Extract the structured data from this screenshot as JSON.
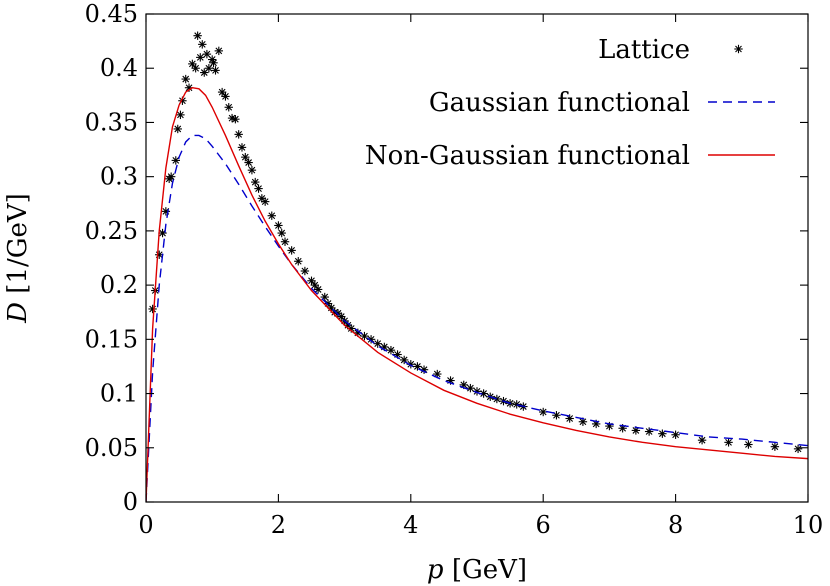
{
  "chart_data": {
    "type": "line",
    "xlabel_var": "p",
    "xlabel_unit": " [GeV]",
    "ylabel_var": "D",
    "ylabel_unit": " [1/GeV]",
    "xlim": [
      0,
      10
    ],
    "ylim": [
      0,
      0.45
    ],
    "x_ticks": [
      0,
      2,
      4,
      6,
      8,
      10
    ],
    "y_ticks": [
      0,
      0.05,
      0.1,
      0.15,
      0.2,
      0.25,
      0.3,
      0.35,
      0.4,
      0.45
    ],
    "x_tick_labels": [
      "0",
      "2",
      "4",
      "6",
      "8",
      "10"
    ],
    "y_tick_labels": [
      "0",
      "0.05",
      "0.1",
      "0.15",
      "0.2",
      "0.25",
      "0.3",
      "0.35",
      "0.4",
      "0.45"
    ],
    "grid": false,
    "legend_position": "top-right",
    "colors": {
      "lattice": "#000000",
      "gaussian": "#0000cc",
      "non_gaussian": "#dd0000"
    },
    "series": [
      {
        "name": "Lattice",
        "style": "points",
        "points": [
          [
            0.1,
            0.178
          ],
          [
            0.14,
            0.195
          ],
          [
            0.2,
            0.228
          ],
          [
            0.25,
            0.248
          ],
          [
            0.3,
            0.268
          ],
          [
            0.35,
            0.298
          ],
          [
            0.38,
            0.3
          ],
          [
            0.45,
            0.315
          ],
          [
            0.48,
            0.344
          ],
          [
            0.52,
            0.357
          ],
          [
            0.55,
            0.37
          ],
          [
            0.6,
            0.39
          ],
          [
            0.65,
            0.382
          ],
          [
            0.7,
            0.404
          ],
          [
            0.75,
            0.4
          ],
          [
            0.78,
            0.43
          ],
          [
            0.82,
            0.41
          ],
          [
            0.85,
            0.422
          ],
          [
            0.88,
            0.396
          ],
          [
            0.92,
            0.413
          ],
          [
            0.95,
            0.4
          ],
          [
            1.0,
            0.408
          ],
          [
            1.02,
            0.405
          ],
          [
            1.05,
            0.398
          ],
          [
            1.1,
            0.416
          ],
          [
            1.15,
            0.378
          ],
          [
            1.2,
            0.374
          ],
          [
            1.25,
            0.364
          ],
          [
            1.3,
            0.354
          ],
          [
            1.35,
            0.353
          ],
          [
            1.4,
            0.339
          ],
          [
            1.45,
            0.327
          ],
          [
            1.5,
            0.318
          ],
          [
            1.55,
            0.313
          ],
          [
            1.6,
            0.306
          ],
          [
            1.65,
            0.295
          ],
          [
            1.7,
            0.289
          ],
          [
            1.75,
            0.28
          ],
          [
            1.8,
            0.277
          ],
          [
            1.9,
            0.264
          ],
          [
            2.0,
            0.255
          ],
          [
            2.05,
            0.248
          ],
          [
            2.1,
            0.24
          ],
          [
            2.2,
            0.232
          ],
          [
            2.3,
            0.222
          ],
          [
            2.4,
            0.213
          ],
          [
            2.5,
            0.204
          ],
          [
            2.55,
            0.2
          ],
          [
            2.6,
            0.196
          ],
          [
            2.7,
            0.189
          ],
          [
            2.75,
            0.183
          ],
          [
            2.8,
            0.179
          ],
          [
            2.85,
            0.175
          ],
          [
            2.9,
            0.174
          ],
          [
            2.95,
            0.171
          ],
          [
            3.0,
            0.167
          ],
          [
            3.05,
            0.163
          ],
          [
            3.1,
            0.16
          ],
          [
            3.2,
            0.156
          ],
          [
            3.3,
            0.153
          ],
          [
            3.4,
            0.15
          ],
          [
            3.5,
            0.146
          ],
          [
            3.6,
            0.143
          ],
          [
            3.7,
            0.14
          ],
          [
            3.8,
            0.136
          ],
          [
            3.9,
            0.131
          ],
          [
            4.0,
            0.127
          ],
          [
            4.1,
            0.125
          ],
          [
            4.2,
            0.122
          ],
          [
            4.4,
            0.118
          ],
          [
            4.6,
            0.112
          ],
          [
            4.8,
            0.108
          ],
          [
            4.9,
            0.105
          ],
          [
            5.0,
            0.102
          ],
          [
            5.1,
            0.1
          ],
          [
            5.2,
            0.097
          ],
          [
            5.3,
            0.095
          ],
          [
            5.4,
            0.093
          ],
          [
            5.5,
            0.091
          ],
          [
            5.6,
            0.09
          ],
          [
            5.7,
            0.088
          ],
          [
            6.0,
            0.083
          ],
          [
            6.2,
            0.08
          ],
          [
            6.4,
            0.077
          ],
          [
            6.6,
            0.074
          ],
          [
            6.8,
            0.072
          ],
          [
            7.0,
            0.07
          ],
          [
            7.2,
            0.068
          ],
          [
            7.4,
            0.066
          ],
          [
            7.6,
            0.065
          ],
          [
            7.8,
            0.063
          ],
          [
            8.0,
            0.062
          ],
          [
            8.4,
            0.057
          ],
          [
            8.8,
            0.055
          ],
          [
            9.1,
            0.053
          ],
          [
            9.5,
            0.051
          ],
          [
            9.85,
            0.049
          ]
        ]
      },
      {
        "name": "Gaussian functional",
        "style": "dashed",
        "points": [
          [
            0.0,
            0.0
          ],
          [
            0.05,
            0.06
          ],
          [
            0.1,
            0.12
          ],
          [
            0.2,
            0.2
          ],
          [
            0.3,
            0.256
          ],
          [
            0.4,
            0.294
          ],
          [
            0.5,
            0.318
          ],
          [
            0.6,
            0.332
          ],
          [
            0.7,
            0.338
          ],
          [
            0.8,
            0.338
          ],
          [
            0.9,
            0.335
          ],
          [
            1.0,
            0.328
          ],
          [
            1.2,
            0.312
          ],
          [
            1.4,
            0.293
          ],
          [
            1.6,
            0.273
          ],
          [
            1.8,
            0.254
          ],
          [
            2.0,
            0.236
          ],
          [
            2.2,
            0.219
          ],
          [
            2.5,
            0.197
          ],
          [
            3.0,
            0.167
          ],
          [
            3.5,
            0.144
          ],
          [
            4.0,
            0.126
          ],
          [
            4.5,
            0.112
          ],
          [
            5.0,
            0.101
          ],
          [
            5.5,
            0.091
          ],
          [
            6.0,
            0.084
          ],
          [
            6.5,
            0.078
          ],
          [
            7.0,
            0.072
          ],
          [
            7.5,
            0.068
          ],
          [
            8.0,
            0.064
          ],
          [
            8.5,
            0.06
          ],
          [
            9.0,
            0.058
          ],
          [
            9.5,
            0.055
          ],
          [
            10.0,
            0.052
          ]
        ]
      },
      {
        "name": "Non-Gaussian functional",
        "style": "solid",
        "points": [
          [
            0.0,
            0.0
          ],
          [
            0.05,
            0.08
          ],
          [
            0.1,
            0.16
          ],
          [
            0.2,
            0.25
          ],
          [
            0.3,
            0.308
          ],
          [
            0.4,
            0.346
          ],
          [
            0.5,
            0.366
          ],
          [
            0.6,
            0.378
          ],
          [
            0.7,
            0.382
          ],
          [
            0.8,
            0.381
          ],
          [
            0.9,
            0.375
          ],
          [
            1.0,
            0.364
          ],
          [
            1.2,
            0.338
          ],
          [
            1.4,
            0.31
          ],
          [
            1.6,
            0.283
          ],
          [
            1.8,
            0.259
          ],
          [
            2.0,
            0.238
          ],
          [
            2.2,
            0.219
          ],
          [
            2.5,
            0.195
          ],
          [
            3.0,
            0.163
          ],
          [
            3.5,
            0.138
          ],
          [
            4.0,
            0.119
          ],
          [
            4.5,
            0.103
          ],
          [
            5.0,
            0.091
          ],
          [
            5.5,
            0.081
          ],
          [
            6.0,
            0.073
          ],
          [
            6.5,
            0.066
          ],
          [
            7.0,
            0.06
          ],
          [
            7.5,
            0.055
          ],
          [
            8.0,
            0.051
          ],
          [
            8.5,
            0.048
          ],
          [
            9.0,
            0.045
          ],
          [
            9.5,
            0.042
          ],
          [
            10.0,
            0.04
          ]
        ]
      }
    ]
  }
}
